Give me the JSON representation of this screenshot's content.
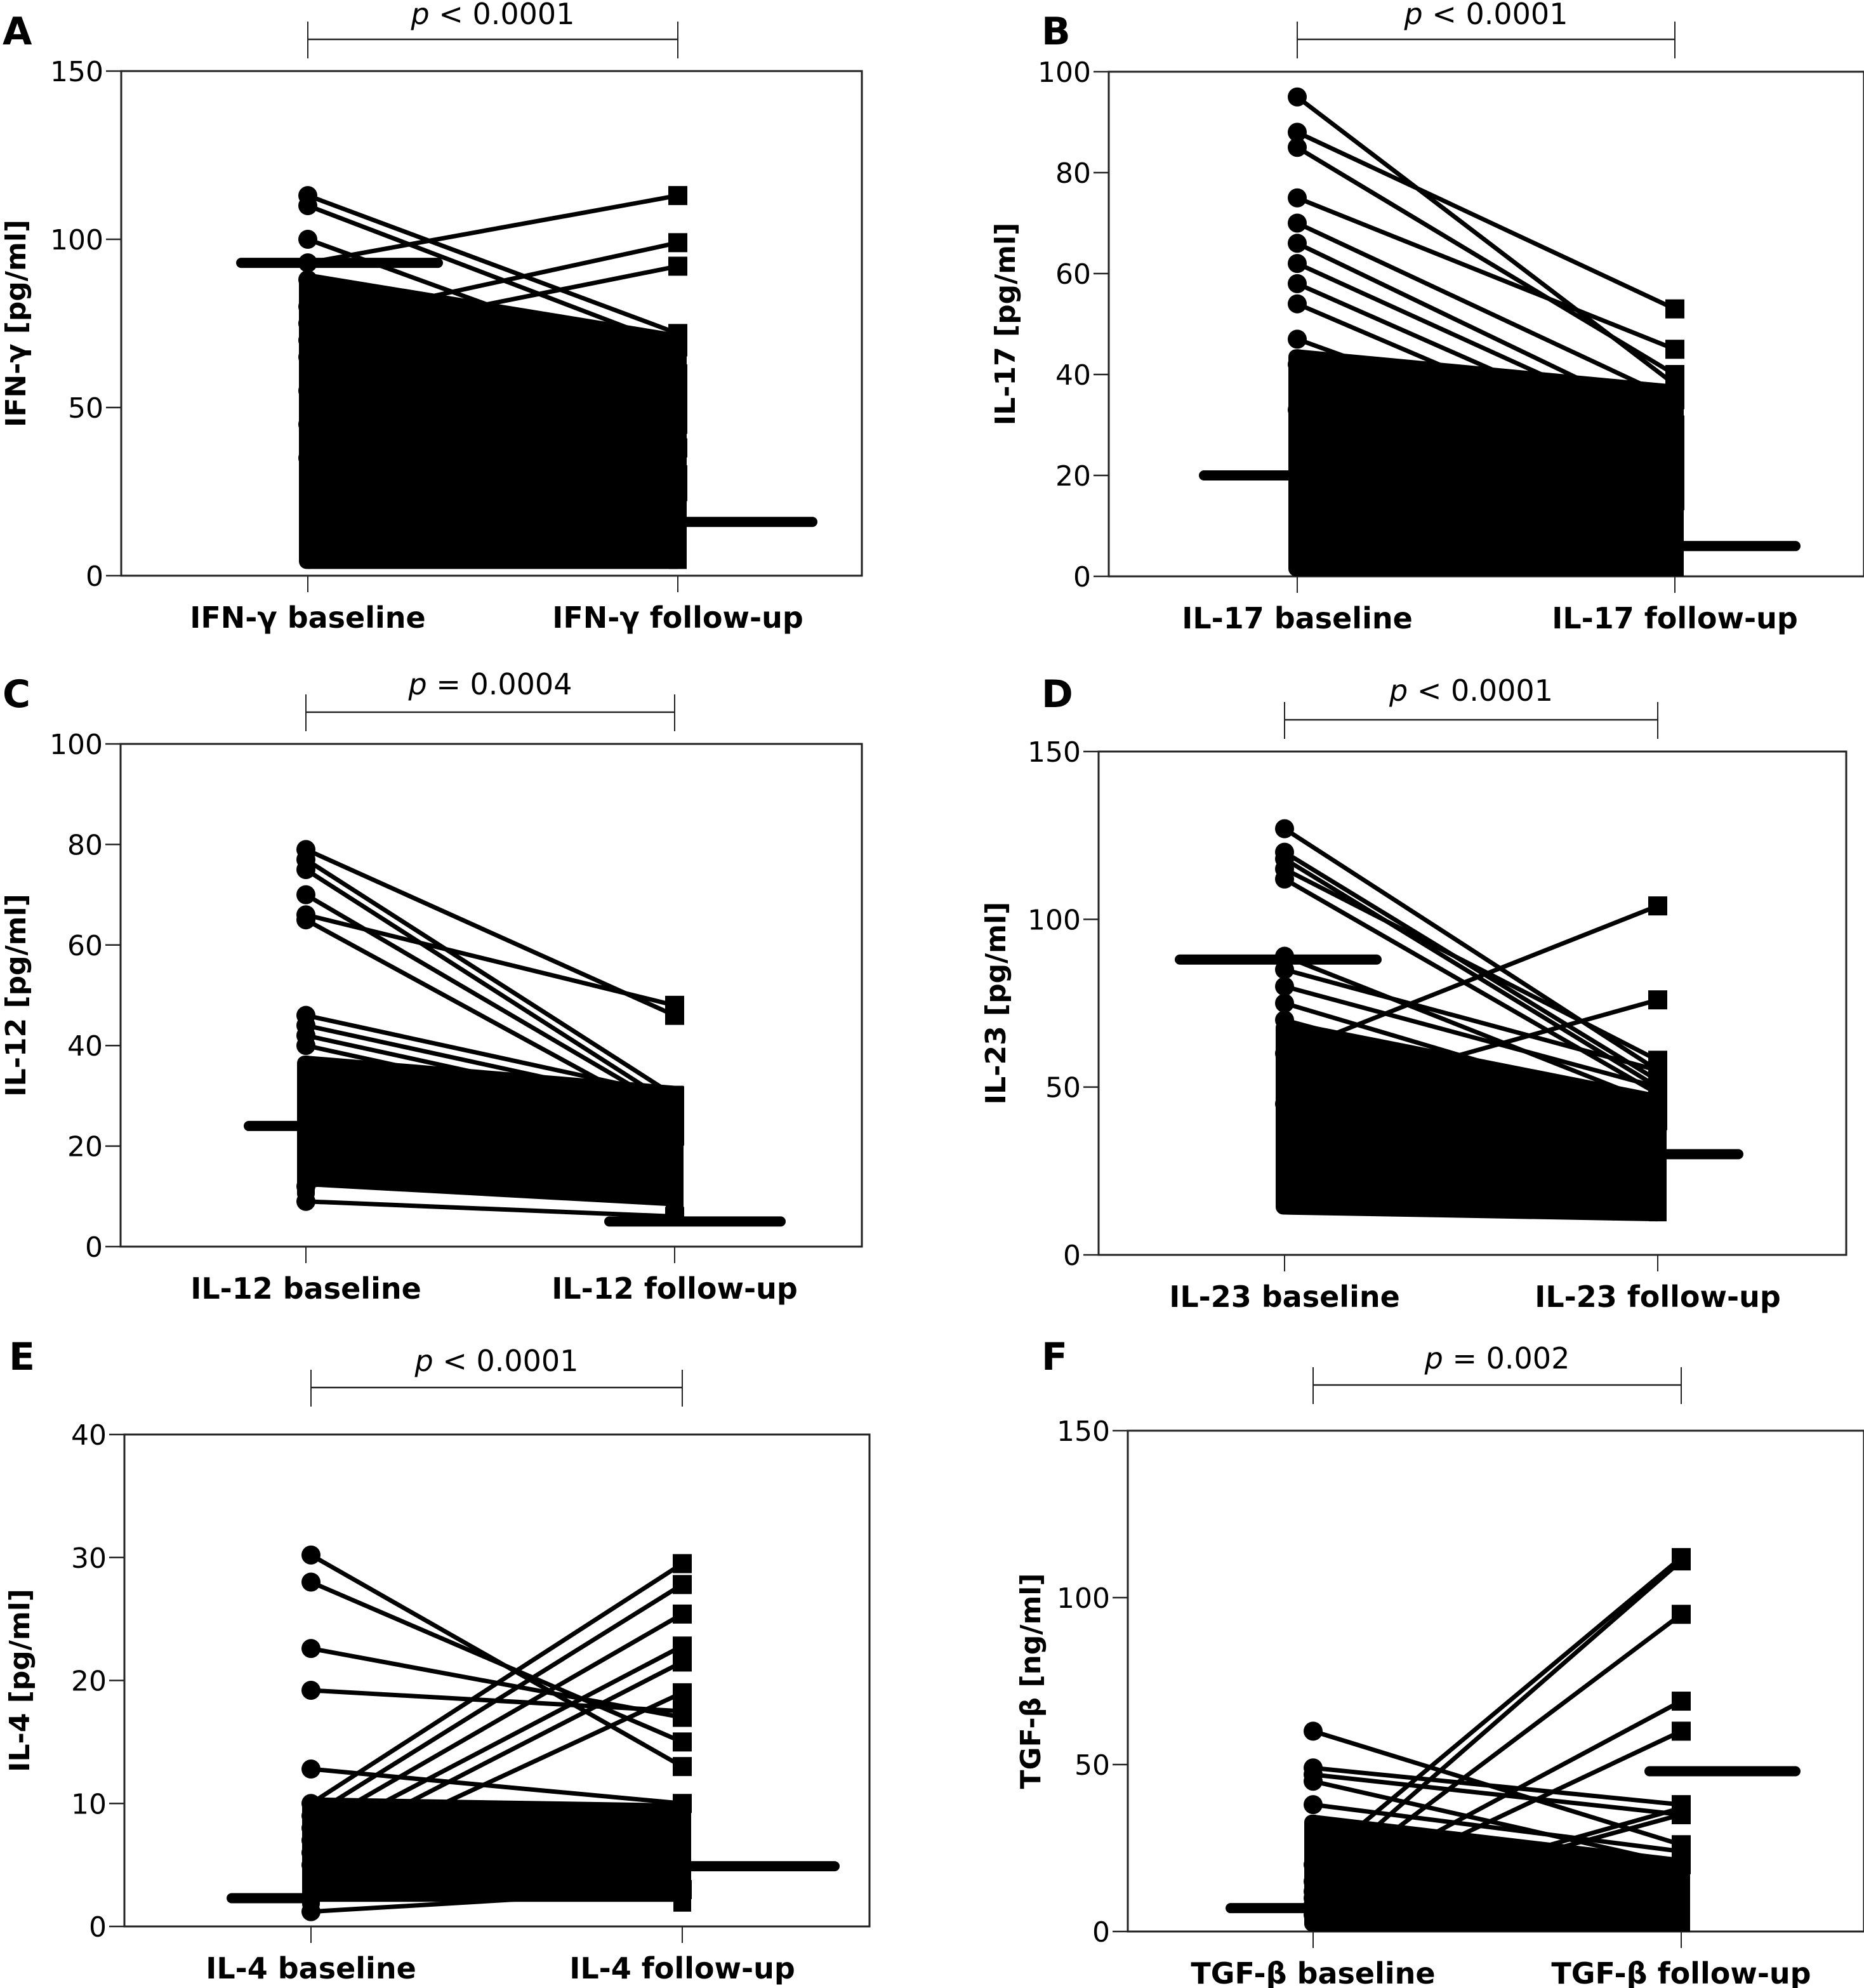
{
  "figure": {
    "panels_order": [
      "A",
      "B",
      "C",
      "D",
      "E",
      "F"
    ]
  },
  "chart_data": [
    {
      "panel": "A",
      "type": "line",
      "subtype": "paired before-after plot",
      "title": "",
      "significance": "p < 0.0001",
      "categories": [
        "IFN-γ baseline",
        "IFN-γ follow-up"
      ],
      "xlabel": "",
      "ylabel": "IFN-γ [pg/ml]",
      "ylim": [
        0,
        150
      ],
      "yticks": [
        0,
        50,
        100,
        150
      ],
      "median": {
        "baseline": 93,
        "followup": 16
      },
      "range": {
        "baseline": [
          2,
          113
        ],
        "followup": [
          2,
          113
        ]
      },
      "dense_band": {
        "baseline": [
          2,
          90
        ],
        "followup": [
          2,
          72
        ]
      },
      "highlighted_pairs": [
        {
          "baseline": 113,
          "followup": 72
        },
        {
          "baseline": 110,
          "followup": 68
        },
        {
          "baseline": 93,
          "followup": 113
        },
        {
          "baseline": 75,
          "followup": 99
        },
        {
          "baseline": 70,
          "followup": 92
        },
        {
          "baseline": 100,
          "followup": 60
        },
        {
          "baseline": 88,
          "followup": 55
        },
        {
          "baseline": 80,
          "followup": 45
        },
        {
          "baseline": 65,
          "followup": 38
        },
        {
          "baseline": 55,
          "followup": 50
        },
        {
          "baseline": 45,
          "followup": 30
        },
        {
          "baseline": 35,
          "followup": 25
        }
      ]
    },
    {
      "panel": "B",
      "type": "line",
      "subtype": "paired before-after plot",
      "title": "",
      "significance": "p < 0.0001",
      "categories": [
        "IL-17 baseline",
        "IL-17 follow-up"
      ],
      "xlabel": "",
      "ylabel": "IL-17 [pg/ml]",
      "ylim": [
        0,
        100
      ],
      "yticks": [
        0,
        20,
        40,
        60,
        80,
        100
      ],
      "median": {
        "baseline": 20,
        "followup": 6
      },
      "range": {
        "baseline": [
          0,
          95
        ],
        "followup": [
          0,
          53
        ]
      },
      "dense_band": {
        "baseline": [
          0,
          45
        ],
        "followup": [
          0,
          38
        ]
      },
      "highlighted_pairs": [
        {
          "baseline": 95,
          "followup": 38
        },
        {
          "baseline": 88,
          "followup": 53
        },
        {
          "baseline": 85,
          "followup": 40
        },
        {
          "baseline": 75,
          "followup": 45
        },
        {
          "baseline": 70,
          "followup": 35
        },
        {
          "baseline": 66,
          "followup": 30
        },
        {
          "baseline": 62,
          "followup": 28
        },
        {
          "baseline": 58,
          "followup": 25
        },
        {
          "baseline": 54,
          "followup": 22
        },
        {
          "baseline": 47,
          "followup": 20
        },
        {
          "baseline": 42,
          "followup": 18
        },
        {
          "baseline": 33,
          "followup": 15
        }
      ]
    },
    {
      "panel": "C",
      "type": "line",
      "subtype": "paired before-after plot",
      "title": "",
      "significance": "p = 0.0004",
      "categories": [
        "IL-12 baseline",
        "IL-12 follow-up"
      ],
      "xlabel": "",
      "ylabel": "IL-12 [pg/ml]",
      "ylim": [
        0,
        100
      ],
      "yticks": [
        0,
        20,
        40,
        60,
        80,
        100
      ],
      "median": {
        "baseline": 24,
        "followup": 5
      },
      "range": {
        "baseline": [
          9,
          79
        ],
        "followup": [
          5,
          49
        ]
      },
      "dense_band": {
        "baseline": [
          12,
          38
        ],
        "followup": [
          8,
          32
        ]
      },
      "highlighted_pairs": [
        {
          "baseline": 79,
          "followup": 46
        },
        {
          "baseline": 77,
          "followup": 30
        },
        {
          "baseline": 75,
          "followup": 28
        },
        {
          "baseline": 70,
          "followup": 27
        },
        {
          "baseline": 66,
          "followup": 48
        },
        {
          "baseline": 65,
          "followup": 25
        },
        {
          "baseline": 46,
          "followup": 30
        },
        {
          "baseline": 44,
          "followup": 28
        },
        {
          "baseline": 42,
          "followup": 26
        },
        {
          "baseline": 40,
          "followup": 24
        },
        {
          "baseline": 12,
          "followup": 22
        },
        {
          "baseline": 9,
          "followup": 6
        }
      ]
    },
    {
      "panel": "D",
      "type": "line",
      "subtype": "paired before-after plot",
      "title": "",
      "significance": "p < 0.0001",
      "categories": [
        "IL-23 baseline",
        "IL-23 follow-up"
      ],
      "xlabel": "",
      "ylabel": "IL-23 [pg/ml]",
      "ylim": [
        0,
        150
      ],
      "yticks": [
        0,
        50,
        100,
        150
      ],
      "median": {
        "baseline": 88,
        "followup": 30
      },
      "range": {
        "baseline": [
          12,
          127
        ],
        "followup": [
          10,
          104
        ]
      },
      "dense_band": {
        "baseline": [
          12,
          70
        ],
        "followup": [
          10,
          48
        ]
      },
      "highlighted_pairs": [
        {
          "baseline": 127,
          "followup": 55
        },
        {
          "baseline": 120,
          "followup": 52
        },
        {
          "baseline": 118,
          "followup": 50
        },
        {
          "baseline": 115,
          "followup": 58
        },
        {
          "baseline": 112,
          "followup": 48
        },
        {
          "baseline": 89,
          "followup": 45
        },
        {
          "baseline": 85,
          "followup": 55
        },
        {
          "baseline": 80,
          "followup": 50
        },
        {
          "baseline": 60,
          "followup": 104
        },
        {
          "baseline": 45,
          "followup": 76
        },
        {
          "baseline": 75,
          "followup": 42
        },
        {
          "baseline": 70,
          "followup": 40
        }
      ]
    },
    {
      "panel": "E",
      "type": "line",
      "subtype": "paired before-after plot",
      "title": "",
      "significance": "p < 0.0001",
      "categories": [
        "IL-4 baseline",
        "IL-4 follow-up"
      ],
      "xlabel": "",
      "ylabel": "IL-4 [pg/ml]",
      "ylim": [
        0,
        40
      ],
      "yticks": [
        0,
        10,
        20,
        30,
        40
      ],
      "median": {
        "baseline": 2.3,
        "followup": 4.9
      },
      "range": {
        "baseline": [
          1.2,
          30.2
        ],
        "followup": [
          1.2,
          29.5
        ]
      },
      "dense_band": {
        "baseline": [
          2,
          10.5
        ],
        "followup": [
          2,
          10
        ]
      },
      "highlighted_pairs": [
        {
          "baseline": 30.2,
          "followup": 13
        },
        {
          "baseline": 28,
          "followup": 15
        },
        {
          "baseline": 22.6,
          "followup": 17
        },
        {
          "baseline": 19.2,
          "followup": 17.5
        },
        {
          "baseline": 12.8,
          "followup": 10
        },
        {
          "baseline": 10,
          "followup": 29.5
        },
        {
          "baseline": 9,
          "followup": 27.8
        },
        {
          "baseline": 8,
          "followup": 25.4
        },
        {
          "baseline": 7,
          "followup": 22.8
        },
        {
          "baseline": 6,
          "followup": 21.5
        },
        {
          "baseline": 5,
          "followup": 19
        },
        {
          "baseline": 1.2,
          "followup": 3
        }
      ]
    },
    {
      "panel": "F",
      "type": "line",
      "subtype": "paired before-after plot",
      "title": "",
      "significance": "p = 0.002",
      "categories": [
        "TGF-β baseline",
        "TGF-β follow-up"
      ],
      "xlabel": "",
      "ylabel": "TGF-β [ng/ml]",
      "ylim": [
        0,
        150
      ],
      "yticks": [
        0,
        50,
        100,
        150
      ],
      "median": {
        "baseline": 7,
        "followup": 48
      },
      "range": {
        "baseline": [
          0,
          60
        ],
        "followup": [
          0,
          112
        ]
      },
      "dense_band": {
        "baseline": [
          0,
          35
        ],
        "followup": [
          0,
          22
        ]
      },
      "highlighted_pairs": [
        {
          "baseline": 60,
          "followup": 26
        },
        {
          "baseline": 49,
          "followup": 38
        },
        {
          "baseline": 47,
          "followup": 35
        },
        {
          "baseline": 45,
          "followup": 20
        },
        {
          "baseline": 38,
          "followup": 24
        },
        {
          "baseline": 20,
          "followup": 112
        },
        {
          "baseline": 15,
          "followup": 111
        },
        {
          "baseline": 12,
          "followup": 95
        },
        {
          "baseline": 10,
          "followup": 69
        },
        {
          "baseline": 8,
          "followup": 60
        },
        {
          "baseline": 6,
          "followup": 37
        },
        {
          "baseline": 5,
          "followup": 35
        }
      ]
    }
  ]
}
